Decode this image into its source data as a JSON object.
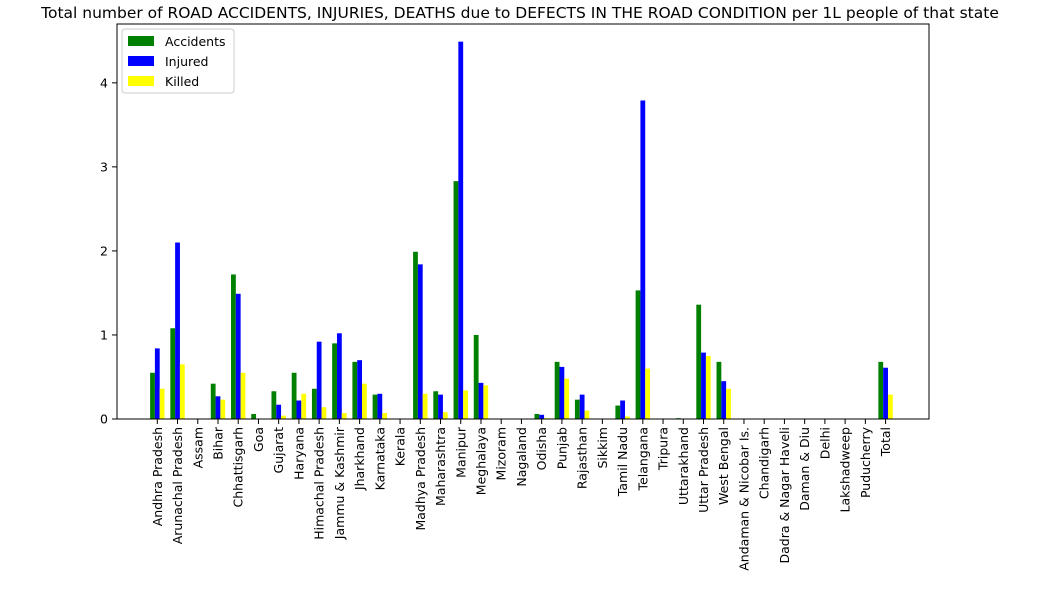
{
  "chart_data": {
    "type": "bar",
    "title": "Total number of ROAD ACCIDENTS, INJURIES, DEATHS due to DEFECTS IN THE ROAD CONDITION per 1L people of that state",
    "xlabel": "",
    "ylabel": "",
    "ylim": [
      0,
      4.7
    ],
    "yticks": [
      0,
      1,
      2,
      3,
      4
    ],
    "grid": false,
    "legend_position": "top-left",
    "categories": [
      "Andhra Pradesh",
      "Arunachal Pradesh",
      "Assam",
      "Bihar",
      "Chhattisgarh",
      "Goa",
      "Gujarat",
      "Haryana",
      "Himachal Pradesh",
      "Jammu & Kashmir",
      "Jharkhand",
      "Karnataka",
      "Kerala",
      "Madhya Pradesh",
      "Maharashtra",
      "Manipur",
      "Meghalaya",
      "Mizoram",
      "Nagaland",
      "Odisha",
      "Punjab",
      "Rajasthan",
      "Sikkim",
      "Tamil Nadu",
      "Telangana",
      "Tripura",
      "Uttarakhand",
      "Uttar Pradesh",
      "West Bengal",
      "Andaman & Nicobar Is.",
      "Chandigarh",
      "Dadra & Nagar Haveli",
      "Daman & Diu",
      "Delhi",
      "Lakshadweep",
      "Puducherry",
      "Total"
    ],
    "series": [
      {
        "name": "Accidents",
        "color": "#008000",
        "values": [
          0.55,
          1.08,
          0,
          0.42,
          1.72,
          0.06,
          0.33,
          0.55,
          0.36,
          0.9,
          0.68,
          0.29,
          0,
          1.99,
          0.33,
          2.83,
          1.0,
          0,
          0,
          0.06,
          0.68,
          0.23,
          0,
          0.16,
          1.53,
          0,
          0.01,
          1.36,
          0.68,
          0,
          0,
          0,
          0,
          0,
          0,
          0,
          0.68
        ]
      },
      {
        "name": "Injured",
        "color": "#0000ff",
        "values": [
          0.84,
          2.1,
          0,
          0.27,
          1.49,
          0,
          0.17,
          0.22,
          0.92,
          1.02,
          0.7,
          0.3,
          0,
          1.84,
          0.29,
          4.49,
          0.43,
          0,
          0,
          0.05,
          0.62,
          0.29,
          0,
          0.22,
          3.79,
          0,
          0,
          0.79,
          0.45,
          0,
          0,
          0,
          0,
          0,
          0,
          0,
          0.61
        ]
      },
      {
        "name": "Killed",
        "color": "#ffff00",
        "values": [
          0.36,
          0.65,
          0,
          0.23,
          0.55,
          0,
          0.04,
          0.3,
          0.14,
          0.07,
          0.42,
          0.07,
          0,
          0.3,
          0.08,
          0.34,
          0.4,
          0,
          0,
          0.01,
          0.48,
          0.1,
          0,
          0.03,
          0.6,
          0,
          0,
          0.75,
          0.36,
          0,
          0,
          0,
          0,
          0,
          0,
          0,
          0.29
        ]
      }
    ]
  }
}
